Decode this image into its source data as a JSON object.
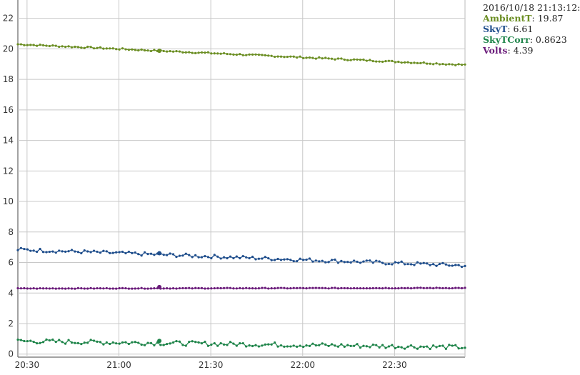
{
  "chart_data": {
    "type": "line",
    "title": "",
    "xlabel": "",
    "ylabel": "",
    "x_range": [
      "20:27",
      "22:53"
    ],
    "ylim": [
      -0.2,
      23.2
    ],
    "y_ticks": [
      0,
      2,
      4,
      6,
      8,
      10,
      12,
      14,
      16,
      18,
      20,
      22
    ],
    "x_ticks": [
      "20:30",
      "21:00",
      "21:30",
      "22:00",
      "22:30"
    ],
    "grid": true,
    "legend_position": "top-right",
    "highlight_time": "21:13:12",
    "series": [
      {
        "name": "AmbientT",
        "color": "#6b8e23",
        "start": 20.3,
        "end": 18.95,
        "noise": 0.05,
        "highlight_value": 19.87
      },
      {
        "name": "SkyT",
        "color": "#1f4e8c",
        "start": 6.85,
        "end": 5.8,
        "noise": 0.12,
        "highlight_value": 6.61
      },
      {
        "name": "SkyTCorr",
        "color": "#1e8449",
        "start": 0.85,
        "end": 0.45,
        "noise": 0.15,
        "highlight_value": 0.8623
      },
      {
        "name": "Volts",
        "color": "#6a1b7a",
        "start": 4.3,
        "end": 4.33,
        "noise": 0.02,
        "highlight_value": 4.39
      }
    ]
  },
  "legend": {
    "timestamp": "2016/10/18 21:13:12:",
    "items": [
      {
        "name": "AmbientT",
        "value": "19.87",
        "color": "#6b8e23"
      },
      {
        "name": "SkyT",
        "value": "6.61",
        "color": "#1f4e8c"
      },
      {
        "name": "SkyTCorr",
        "value": "0.8623",
        "color": "#1e8449"
      },
      {
        "name": "Volts",
        "value": "4.39",
        "color": "#6a1b7a"
      }
    ]
  }
}
